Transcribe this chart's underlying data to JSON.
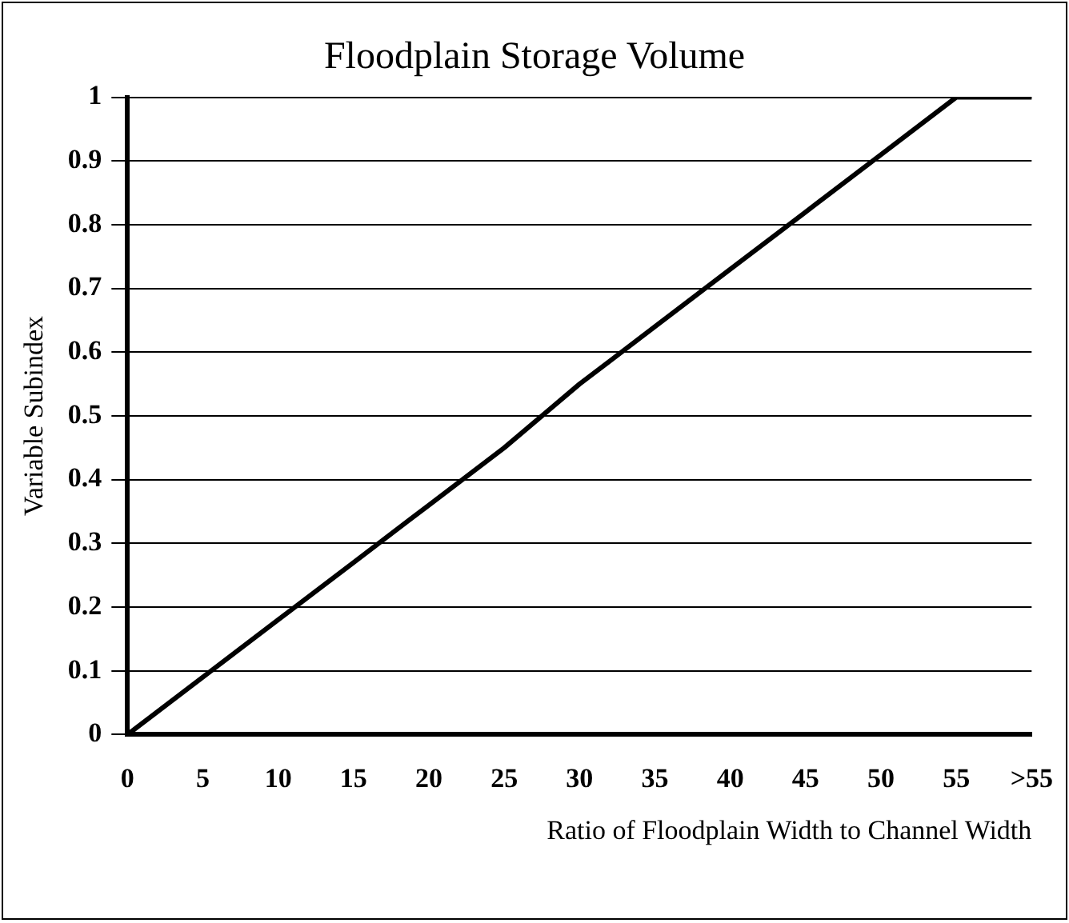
{
  "chart_data": {
    "type": "line",
    "title": "Floodplain Storage Volume",
    "xlabel": "Ratio of Floodplain Width to Channel Width",
    "ylabel": "Variable Subindex",
    "categories": [
      "0",
      "5",
      "10",
      "15",
      "20",
      "25",
      "30",
      "35",
      "40",
      "45",
      "50",
      "55",
      ">55"
    ],
    "series": [
      {
        "color": "#000000",
        "values": [
          0,
          0.09,
          0.18,
          0.27,
          0.36,
          0.45,
          0.55,
          0.64,
          0.73,
          0.82,
          0.91,
          1,
          1
        ]
      }
    ],
    "ylim": [
      0,
      1
    ],
    "yticks": [
      0,
      0.1,
      0.2,
      0.3,
      0.4,
      0.5,
      0.6,
      0.7,
      0.8,
      0.9,
      1
    ],
    "grid": "y",
    "legend": false,
    "marker": "none",
    "line_style": "solid"
  }
}
